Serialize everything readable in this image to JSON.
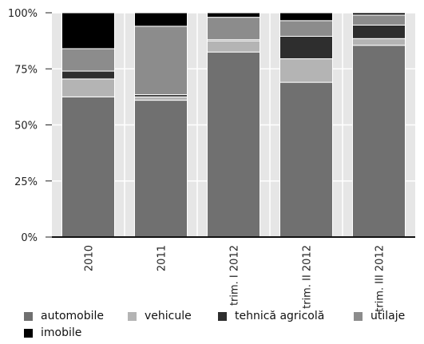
{
  "chart_data": {
    "type": "bar",
    "stacked": true,
    "categories": [
      "2010",
      "2011",
      "trim. I 2012",
      "trim. II 2012",
      "trim. III 2012"
    ],
    "series": [
      {
        "name": "automobile",
        "color": "#707070",
        "values": [
          62.5,
          61,
          82.5,
          69,
          85.5
        ]
      },
      {
        "name": "vehicule",
        "color": "#b4b4b4",
        "values": [
          8,
          1.5,
          5,
          10.5,
          3
        ]
      },
      {
        "name": "tehnică agricolă",
        "color": "#2e2e2e",
        "values": [
          3.5,
          1,
          0.5,
          10,
          6
        ]
      },
      {
        "name": "utilaje",
        "color": "#8c8c8c",
        "values": [
          10,
          30.5,
          10,
          7,
          4.5
        ]
      },
      {
        "name": "imobile",
        "color": "#000000",
        "values": [
          16,
          6,
          2,
          3.5,
          1
        ]
      }
    ],
    "yticks": [
      "0%",
      "25%",
      "50%",
      "75%",
      "100%"
    ],
    "ylim": [
      0,
      100
    ],
    "xlabel": "",
    "ylabel": "",
    "grid": true,
    "legend_position": "bottom"
  }
}
